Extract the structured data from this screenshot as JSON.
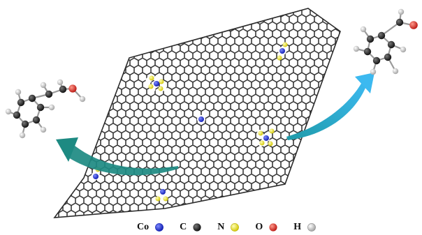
{
  "colors": {
    "background": "#ffffff",
    "graphene": "#2b2b2b",
    "arrow_left": "#1d8a82",
    "arrow_right": "#2fa8e2",
    "co": "#1f2fd6",
    "c": "#111111",
    "n": "#f2ef1a",
    "o": "#e3201c",
    "h": "#d9d9d9",
    "bond": "#9a9a9a"
  },
  "icons": {
    "left_molecule": "benzyl-alcohol-molecule",
    "right_molecule": "benzaldehyde-molecule",
    "sheet": "graphene-sheet-with-co-n-sites",
    "arrow_left": "curved-arrow",
    "arrow_right": "curved-arrow"
  },
  "legend": [
    {
      "label": "Co",
      "color": "#1f2fd6"
    },
    {
      "label": "C",
      "color": "#111111"
    },
    {
      "label": "N",
      "color": "#f2ef1a"
    },
    {
      "label": "O",
      "color": "#e3201c"
    },
    {
      "label": "H",
      "color": "#d9d9d9"
    }
  ]
}
